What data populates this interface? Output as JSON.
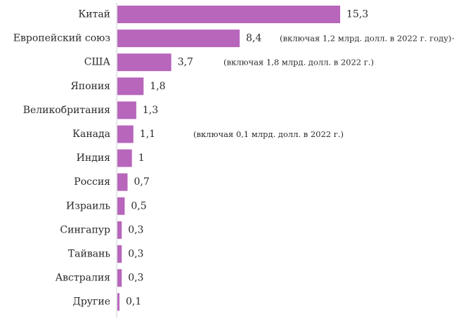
{
  "chart_data": {
    "type": "bar",
    "orientation": "horizontal",
    "categories": [
      "Китай",
      "Европейский союз",
      "США",
      "Япония",
      "Великобритания",
      "Канада",
      "Индия",
      "Россия",
      "Израиль",
      "Сингапур",
      "Тайвань",
      "Австралия",
      "Другие"
    ],
    "values": [
      15.3,
      8.4,
      3.7,
      1.8,
      1.3,
      1.1,
      1,
      0.7,
      0.5,
      0.3,
      0.3,
      0.3,
      0.1
    ],
    "value_labels": [
      "15,3",
      "8,4",
      "3,7",
      "1,8",
      "1,3",
      "1,1",
      "1",
      "0,7",
      "0,5",
      "0,3",
      "0,3",
      "0,3",
      "0,1"
    ],
    "annotations": [
      {
        "category": "Европейский союз",
        "text": "(включая 1,2 млрд. долл. в 2022 г. году)+"
      },
      {
        "category": "США",
        "text": "(включая 1,8 млрд. долл. в 2022 г.)"
      },
      {
        "category": "Канада",
        "text": "(включая 0,1 млрд. долл. в 2022 г.)"
      }
    ],
    "title": "",
    "xlabel": "",
    "ylabel": "",
    "bar_color": "#b766bc",
    "grid": false,
    "legend": "none"
  }
}
